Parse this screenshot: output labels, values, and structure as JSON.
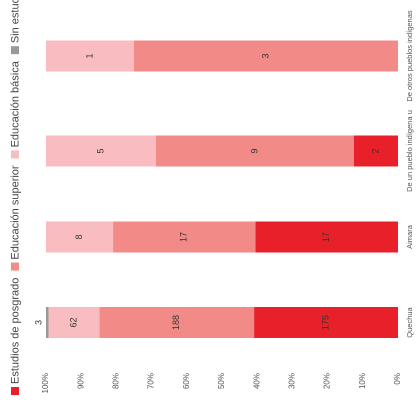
{
  "chart_data": {
    "type": "stacked-percent-bar",
    "categories": [
      "Quechua",
      "Aimara",
      "De un pueblo indígena u",
      "De otros pueblos indígenas"
    ],
    "series": [
      {
        "name": "Estudios de posgrado",
        "color": "#e8202a",
        "values": [
          175,
          17,
          2,
          null
        ]
      },
      {
        "name": "Educación superior",
        "color": "#f28b88",
        "values": [
          188,
          17,
          9,
          3
        ]
      },
      {
        "name": "Educación básica",
        "color": "#f9bcc0",
        "values": [
          62,
          8,
          5,
          1
        ]
      },
      {
        "name": "Sin estudios",
        "color": "#999999",
        "values": [
          3,
          null,
          null,
          null
        ]
      }
    ],
    "ylim": [
      0,
      100
    ],
    "yticks": [
      {
        "value": 0,
        "label": "0%"
      },
      {
        "value": 10,
        "label": "10%"
      },
      {
        "value": 20,
        "label": "20%"
      },
      {
        "value": 30,
        "label": "30%"
      },
      {
        "value": 40,
        "label": "40%"
      },
      {
        "value": 50,
        "label": "50%"
      },
      {
        "value": 60,
        "label": "60%"
      },
      {
        "value": 70,
        "label": "70%"
      },
      {
        "value": 80,
        "label": "80%"
      },
      {
        "value": 90,
        "label": "90%"
      },
      {
        "value": 100,
        "label": "100%"
      }
    ],
    "legend": "top"
  }
}
